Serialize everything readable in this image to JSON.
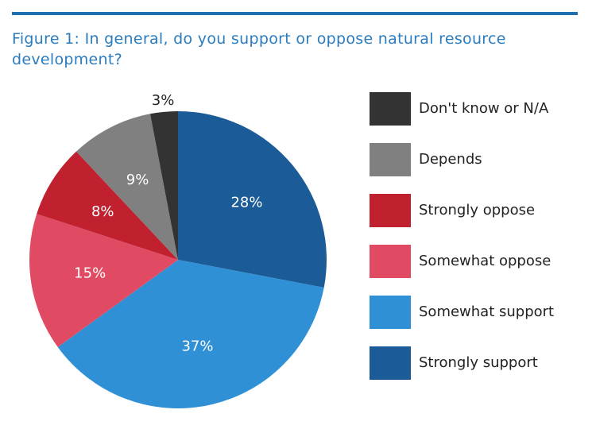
{
  "chart_data": {
    "type": "pie",
    "title": "Figure 1: In general, do you support or oppose natural resource development?",
    "categories": [
      "Strongly support",
      "Somewhat support",
      "Somewhat oppose",
      "Strongly oppose",
      "Depends",
      "Don't know or N/A"
    ],
    "values": [
      28,
      37,
      15,
      8,
      9,
      3
    ],
    "value_labels": [
      "28%",
      "37%",
      "15%",
      "8%",
      "9%",
      "3%"
    ],
    "colors": [
      "#1b5c98",
      "#2f90d5",
      "#e04b63",
      "#c1212f",
      "#808080",
      "#333333"
    ]
  }
}
